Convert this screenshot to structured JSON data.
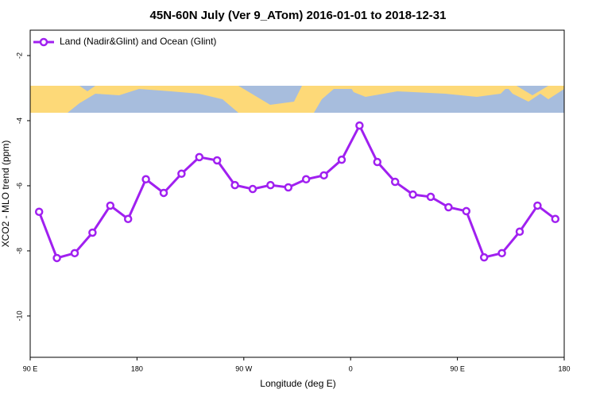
{
  "chart_data": {
    "type": "line",
    "title": "45N-60N July (Ver 9_ATom)   2016-01-01 to 2018-12-31",
    "x_label": "Longitude (deg E)",
    "y_label": "XCO2 - MLO trend (ppm)",
    "x": [
      97.5,
      112.5,
      127.5,
      142.5,
      157.5,
      172.5,
      187.5,
      202.5,
      217.5,
      232.5,
      247.5,
      262.5,
      277.5,
      292.5,
      307.5,
      322.5,
      337.5,
      352.5,
      367.5,
      382.5,
      397.5,
      412.5,
      427.5,
      442.5,
      457.5,
      472.5,
      487.5,
      502.5,
      517.5,
      532.5
    ],
    "series": [
      {
        "name": "Land (Nadir&Glint) and Ocean (Glint)",
        "color": "#a020f0",
        "values": [
          -6.8,
          -8.22,
          -8.07,
          -7.44,
          -6.61,
          -7.02,
          -5.8,
          -6.22,
          -5.63,
          -5.12,
          -5.22,
          -5.98,
          -6.1,
          -5.98,
          -6.05,
          -5.8,
          -5.68,
          -5.2,
          -4.15,
          -5.27,
          -5.88,
          -6.27,
          -6.34,
          -6.66,
          -6.78,
          -8.2,
          -8.07,
          -7.41,
          -6.61,
          -7.02
        ]
      }
    ],
    "xlim": [
      90,
      540
    ],
    "xticks": [
      {
        "value": 90,
        "label": "90 E"
      },
      180,
      {
        "value": 270,
        "label": "90 W"
      },
      {
        "value": 360,
        "label": "0"
      },
      {
        "value": 450,
        "label": "90 E"
      },
      {
        "value": 540,
        "label": "180"
      }
    ],
    "ylim": [
      -11.27,
      -1.22
    ],
    "yticks": [
      -10,
      -8,
      -6,
      -4,
      -2
    ],
    "legend": "top-left"
  }
}
